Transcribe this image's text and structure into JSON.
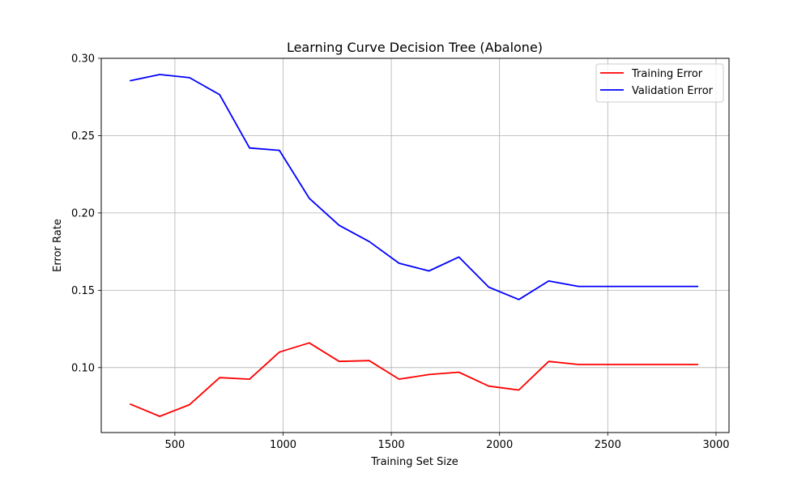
{
  "chart_data": {
    "type": "line",
    "title": "Learning Curve Decision Tree (Abalone)",
    "xlabel": "Training Set Size",
    "ylabel": "Error Rate",
    "xlim": [
      160,
      3060
    ],
    "ylim": [
      0.058,
      0.3
    ],
    "xticks": [
      500,
      1000,
      1500,
      2000,
      2500,
      3000
    ],
    "yticks": [
      0.1,
      0.15,
      0.2,
      0.25,
      0.3
    ],
    "xtick_labels": [
      "500",
      "1000",
      "1500",
      "2000",
      "2500",
      "3000"
    ],
    "ytick_labels": [
      "0.10",
      "0.15",
      "0.20",
      "0.25",
      "0.30"
    ],
    "grid": true,
    "legend_position": "top-right",
    "x": [
      292,
      430,
      568,
      707,
      845,
      983,
      1121,
      1259,
      1398,
      1536,
      1674,
      1812,
      1950,
      2089,
      2227,
      2365,
      2503,
      2641,
      2780,
      2918
    ],
    "series": [
      {
        "name": "Training Error",
        "color": "#ff0000",
        "values": [
          0.0765,
          0.0685,
          0.076,
          0.0935,
          0.0925,
          0.11,
          0.116,
          0.104,
          0.1045,
          0.0925,
          0.0955,
          0.097,
          0.088,
          0.0855,
          0.104,
          0.102,
          0.102,
          0.102,
          0.102,
          0.102
        ]
      },
      {
        "name": "Validation Error",
        "color": "#0000ff",
        "values": [
          0.2855,
          0.2895,
          0.2875,
          0.2765,
          0.242,
          0.2405,
          0.2095,
          0.192,
          0.1815,
          0.1675,
          0.1625,
          0.1715,
          0.152,
          0.144,
          0.156,
          0.1525,
          0.1525,
          0.1525,
          0.1525,
          0.1525
        ]
      }
    ]
  }
}
